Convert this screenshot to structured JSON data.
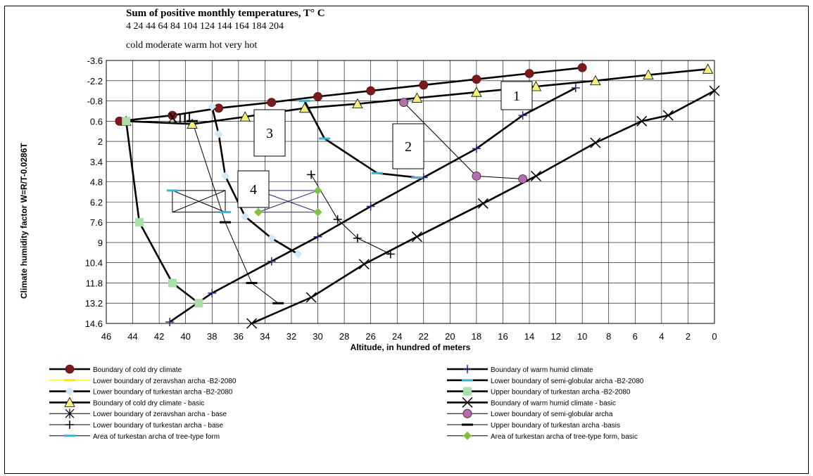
{
  "chart_data": {
    "type": "line",
    "title": "Sum of positive monthly temperatures, T° C",
    "subtitle_numbers": "4 24 44 64 84 104 124 144 164 184 204",
    "subtitle_classes": "cold moderate warm hot very hot",
    "xlabel": "Altitude, in hundred of meters",
    "ylabel": "Climate humidity factor W=R/T-0.0286T",
    "xlim": [
      46,
      0
    ],
    "ylim": [
      -3.6,
      14.6
    ],
    "x_ticks": [
      "46",
      "44",
      "42",
      "40",
      "38",
      "36",
      "34",
      "32",
      "30",
      "28",
      "26",
      "24",
      "22",
      "20",
      "18",
      "16",
      "14",
      "12",
      "10",
      "8",
      "6",
      "4",
      "2",
      "0"
    ],
    "y_ticks": [
      "-3.6",
      "-2.2",
      "-0.8",
      "0.6",
      "2",
      "3.4",
      "4.8",
      "6.2",
      "7.6",
      "9",
      "10.4",
      "11.8",
      "13.2",
      "14.6"
    ],
    "grid": true,
    "legend_position": "bottom",
    "series": [
      {
        "name": "Boundary of cold dry climate",
        "color": "#7b1a1a",
        "marker": "circle",
        "line": "thick",
        "x": [
          45,
          41,
          37.5,
          33.5,
          30,
          26,
          22,
          18,
          14,
          10
        ],
        "y": [
          0.6,
          0.2,
          -0.3,
          -0.7,
          -1.1,
          -1.5,
          -1.9,
          -2.3,
          -2.7,
          -3.1
        ]
      },
      {
        "name": "Lower boundary of zeravshan archa -B2-2080",
        "color": "#ffe600",
        "marker": "dash",
        "line": "thin",
        "x": [],
        "y": []
      },
      {
        "name": "Lower boundary of turkestan archa -B2-2080",
        "color": "#cfe8f7",
        "marker": "diamond",
        "line": "thick",
        "x": [
          38,
          37.5,
          37,
          35.5,
          33.5,
          31.5
        ],
        "y": [
          -0.4,
          1.5,
          4.4,
          7.2,
          8.7,
          9.8
        ]
      },
      {
        "name": "Boundary of cold dry climate - basic",
        "color": "#f5f07a",
        "marker": "triangle",
        "line": "thick",
        "x": [
          44.5,
          39.5,
          35.5,
          31,
          27,
          22.5,
          18,
          13.5,
          9,
          5,
          0.5
        ],
        "y": [
          0.6,
          0.8,
          0.3,
          -0.3,
          -0.6,
          -1.0,
          -1.4,
          -1.8,
          -2.2,
          -2.6,
          -3.0
        ]
      },
      {
        "name": "Lower boundary of zeravshan archa - base",
        "color": "#000000",
        "marker": "asterisk",
        "line": "thin",
        "x": [],
        "y": []
      },
      {
        "name": "Lower boundary of turkestan archa - base",
        "color": "#000000",
        "marker": "plus",
        "line": "thin",
        "x": [
          30.5,
          28.5,
          27,
          24.5
        ],
        "y": [
          4.3,
          7.4,
          8.7,
          9.8
        ]
      },
      {
        "name": "Area of turkestan archa of tree-type form",
        "color": "#33b5d6",
        "marker": "dash",
        "line": "thin",
        "x": [
          41,
          37
        ],
        "y": [
          5.4,
          6.9
        ]
      },
      {
        "name": "Boundary of warm humid climate",
        "color": "#27277a",
        "marker": "plus",
        "line": "thick",
        "x": [
          41.2,
          38,
          33.5,
          30,
          26,
          22,
          18,
          14.5,
          10.5
        ],
        "y": [
          14.5,
          12.5,
          10.3,
          8.6,
          6.5,
          4.5,
          2.5,
          0.2,
          -1.7
        ]
      },
      {
        "name": "Lower boundary of semi-globular archa -B2-2080",
        "color": "#33b5d6",
        "marker": "dash",
        "line": "thick",
        "x": [
          31,
          29.5,
          25.5,
          22.5
        ],
        "y": [
          -0.8,
          1.8,
          4.2,
          4.5
        ]
      },
      {
        "name": "Upper boundary of turkestan archa -B2-2080",
        "color": "#a8e0a8",
        "marker": "square",
        "line": "thick",
        "x": [
          44.5,
          43.5,
          41,
          39
        ],
        "y": [
          0.6,
          7.6,
          11.8,
          13.2
        ]
      },
      {
        "name": "Boundary of warm humid climate - basic",
        "color": "#000000",
        "marker": "x",
        "line": "thick",
        "x": [
          35,
          30.5,
          26.5,
          22.5,
          17.5,
          13.5,
          9,
          5.5,
          3.5,
          0
        ],
        "y": [
          14.6,
          12.8,
          10.5,
          8.6,
          6.3,
          4.4,
          2.1,
          0.6,
          0.2,
          -1.5
        ]
      },
      {
        "name": "Lower boundary of semi-globular archa",
        "color": "#b06fb0",
        "marker": "circle",
        "line": "thin",
        "x": [
          23.5,
          18,
          14.5
        ],
        "y": [
          -0.7,
          4.4,
          4.6
        ]
      },
      {
        "name": "Upper boundary of turkestan archa -basis",
        "color": "#000000",
        "marker": "dash",
        "line": "thin",
        "x": [
          39.5,
          37,
          35,
          33
        ],
        "y": [
          0.6,
          7.6,
          11.8,
          13.2
        ]
      },
      {
        "name": "Area  of turkestan archa of tree-type form, basic",
        "color": "#7fc241",
        "marker": "diamond",
        "line": "thin",
        "x": [
          34.5,
          30,
          34.5,
          30
        ],
        "y": [
          5.4,
          5.4,
          6.9,
          6.9
        ]
      }
    ],
    "annotations": [
      "1",
      "2",
      "3",
      "4",
      "XIII"
    ]
  }
}
